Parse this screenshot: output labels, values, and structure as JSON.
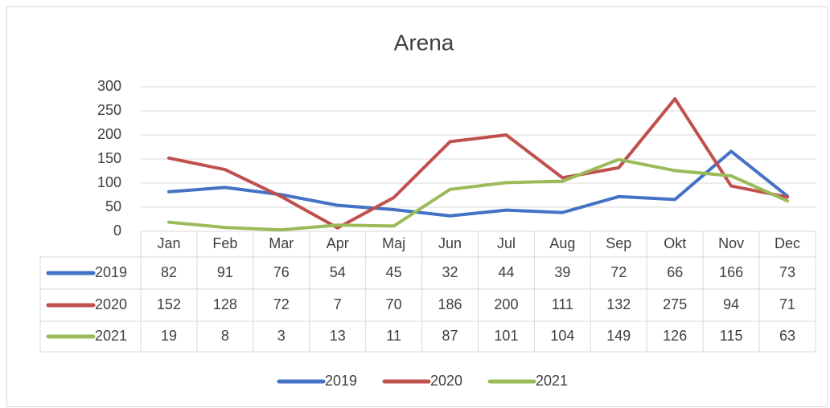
{
  "chart_data": {
    "type": "line",
    "title": "Arena",
    "categories": [
      "Jan",
      "Feb",
      "Mar",
      "Apr",
      "Maj",
      "Jun",
      "Jul",
      "Aug",
      "Sep",
      "Okt",
      "Nov",
      "Dec"
    ],
    "series": [
      {
        "name": "2019",
        "color": "#4472c4",
        "values": [
          82,
          91,
          76,
          54,
          45,
          32,
          44,
          39,
          72,
          66,
          166,
          73
        ]
      },
      {
        "name": "2020",
        "color": "#c0504d",
        "values": [
          152,
          128,
          72,
          7,
          70,
          186,
          200,
          111,
          132,
          275,
          94,
          71
        ]
      },
      {
        "name": "2021",
        "color": "#9bbb59",
        "values": [
          19,
          8,
          3,
          13,
          11,
          87,
          101,
          104,
          149,
          126,
          115,
          63
        ]
      }
    ],
    "ylim": [
      0,
      300
    ],
    "yticks": [
      0,
      50,
      100,
      150,
      200,
      250,
      300
    ],
    "grid": true,
    "legend": "bottom"
  }
}
